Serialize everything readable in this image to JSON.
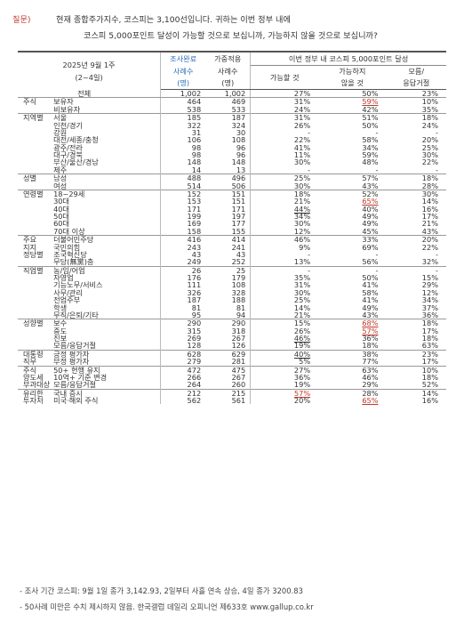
{
  "question": {
    "tag": "질문)",
    "line1": "현재 종합주가지수, 코스피는 3,100선입니다. 귀하는 이번 정부 내에",
    "line2": "코스피 5,000포인트 달성이 가능할 것으로 보십니까, 가능하지 않을 것으로 보십니까?"
  },
  "header": {
    "period": "2025년 9월 1주",
    "period_sub": "(2~4일)",
    "col_done": "조사완료",
    "col_weight": "가중적용",
    "col_n": "사례수",
    "col_unit": "(명)",
    "group": "이번 정부 내 코스피 5,000포인트 달성",
    "possible": "가능할 것",
    "impossible_1": "가능하지",
    "impossible_2": "않을 것",
    "unknown_1": "모름/",
    "unknown_2": "응답거절"
  },
  "rows": [
    {
      "cat": "",
      "sub": "전체",
      "n1": "1,002",
      "n2": "1,002",
      "a": "27%",
      "b": "50%",
      "c": "23%",
      "total": true
    },
    {
      "cat": "주식",
      "sub": "보유자",
      "n1": "464",
      "n2": "469",
      "a": "31%",
      "b": "59%",
      "c": "10%",
      "mb": "r"
    },
    {
      "cat": "",
      "sub": "비보유자",
      "n1": "538",
      "n2": "533",
      "a": "24%",
      "b": "42%",
      "c": "35%"
    },
    {
      "cat": "지역별",
      "sub": "서울",
      "n1": "185",
      "n2": "187",
      "a": "31%",
      "b": "51%",
      "c": "18%",
      "sep": true
    },
    {
      "cat": "",
      "sub": "인천/경기",
      "n1": "322",
      "n2": "324",
      "a": "26%",
      "b": "50%",
      "c": "24%"
    },
    {
      "cat": "",
      "sub": "강원",
      "n1": "31",
      "n2": "30",
      "a": "-",
      "b": "-",
      "c": "-"
    },
    {
      "cat": "",
      "sub": "대전/세종/충청",
      "n1": "106",
      "n2": "108",
      "a": "22%",
      "b": "58%",
      "c": "20%"
    },
    {
      "cat": "",
      "sub": "광주/전라",
      "n1": "98",
      "n2": "96",
      "a": "41%",
      "b": "34%",
      "c": "25%"
    },
    {
      "cat": "",
      "sub": "대구/경북",
      "n1": "98",
      "n2": "96",
      "a": "11%",
      "b": "59%",
      "c": "30%"
    },
    {
      "cat": "",
      "sub": "부산/울산/경남",
      "n1": "148",
      "n2": "148",
      "a": "30%",
      "b": "48%",
      "c": "22%"
    },
    {
      "cat": "",
      "sub": "제주",
      "n1": "14",
      "n2": "13",
      "a": "-",
      "b": "-",
      "c": "-"
    },
    {
      "cat": "성별",
      "sub": "남성",
      "n1": "488",
      "n2": "496",
      "a": "25%",
      "b": "57%",
      "c": "18%",
      "sep": true
    },
    {
      "cat": "",
      "sub": "여성",
      "n1": "514",
      "n2": "506",
      "a": "30%",
      "b": "43%",
      "c": "28%"
    },
    {
      "cat": "연령별",
      "sub": "18~29세",
      "n1": "152",
      "n2": "151",
      "a": "18%",
      "b": "52%",
      "c": "30%",
      "sep": true
    },
    {
      "cat": "",
      "sub": "30대",
      "n1": "153",
      "n2": "151",
      "a": "21%",
      "b": "65%",
      "c": "14%",
      "mb": "r"
    },
    {
      "cat": "",
      "sub": "40대",
      "n1": "171",
      "n2": "171",
      "a": "44%",
      "b": "40%",
      "c": "16%",
      "ma": "u"
    },
    {
      "cat": "",
      "sub": "50대",
      "n1": "199",
      "n2": "197",
      "a": "34%",
      "b": "49%",
      "c": "17%"
    },
    {
      "cat": "",
      "sub": "60대",
      "n1": "169",
      "n2": "177",
      "a": "30%",
      "b": "49%",
      "c": "21%"
    },
    {
      "cat": "",
      "sub": "70대 이상",
      "n1": "158",
      "n2": "155",
      "a": "12%",
      "b": "45%",
      "c": "43%"
    },
    {
      "cat": "주요",
      "sub": "더불어민주당",
      "n1": "416",
      "n2": "414",
      "a": "46%",
      "b": "33%",
      "c": "20%",
      "sep": true
    },
    {
      "cat": "지지",
      "sub": "국민의힘",
      "n1": "243",
      "n2": "241",
      "a": "9%",
      "b": "69%",
      "c": "22%"
    },
    {
      "cat": "정당별",
      "sub": "조국혁신당",
      "n1": "43",
      "n2": "43",
      "a": "-",
      "b": "-",
      "c": "-"
    },
    {
      "cat": "",
      "sub": "무당(無黨)층",
      "n1": "249",
      "n2": "252",
      "a": "13%",
      "b": "56%",
      "c": "32%"
    },
    {
      "cat": "직업별",
      "sub": "농/임/어업",
      "n1": "26",
      "n2": "25",
      "a": "-",
      "b": "-",
      "c": "-",
      "sep": true
    },
    {
      "cat": "",
      "sub": "자영업",
      "n1": "176",
      "n2": "179",
      "a": "35%",
      "b": "50%",
      "c": "15%"
    },
    {
      "cat": "",
      "sub": "기능노무/서비스",
      "n1": "111",
      "n2": "108",
      "a": "31%",
      "b": "41%",
      "c": "29%"
    },
    {
      "cat": "",
      "sub": "사무/관리",
      "n1": "326",
      "n2": "328",
      "a": "30%",
      "b": "58%",
      "c": "12%"
    },
    {
      "cat": "",
      "sub": "전업주부",
      "n1": "187",
      "n2": "188",
      "a": "25%",
      "b": "41%",
      "c": "34%"
    },
    {
      "cat": "",
      "sub": "학생",
      "n1": "81",
      "n2": "81",
      "a": "14%",
      "b": "49%",
      "c": "37%"
    },
    {
      "cat": "",
      "sub": "무직/은퇴/기타",
      "n1": "95",
      "n2": "94",
      "a": "21%",
      "b": "43%",
      "c": "36%"
    },
    {
      "cat": "성향별",
      "sub": "보수",
      "n1": "290",
      "n2": "290",
      "a": "15%",
      "b": "68%",
      "c": "18%",
      "sep": true,
      "mb": "r"
    },
    {
      "cat": "",
      "sub": "중도",
      "n1": "315",
      "n2": "318",
      "a": "26%",
      "b": "57%",
      "c": "17%",
      "mb": "r"
    },
    {
      "cat": "",
      "sub": "진보",
      "n1": "269",
      "n2": "267",
      "a": "46%",
      "b": "36%",
      "c": "18%",
      "ma": "u"
    },
    {
      "cat": "",
      "sub": "모름/응답거절",
      "n1": "128",
      "n2": "126",
      "a": "19%",
      "b": "18%",
      "c": "63%"
    },
    {
      "cat": "대통령",
      "sub": "긍정 평가자",
      "n1": "628",
      "n2": "629",
      "a": "40%",
      "b": "38%",
      "c": "23%",
      "sep": true,
      "ma": "u"
    },
    {
      "cat": "직무",
      "sub": "부정 평가자",
      "n1": "279",
      "n2": "281",
      "a": "5%",
      "b": "77%",
      "c": "17%"
    },
    {
      "cat": "주식",
      "sub": "50+ 현행 유지",
      "n1": "472",
      "n2": "475",
      "a": "27%",
      "b": "63%",
      "c": "10%",
      "sep": true
    },
    {
      "cat": "양도세",
      "sub": "10억+ 기준 변경",
      "n1": "266",
      "n2": "267",
      "a": "36%",
      "b": "46%",
      "c": "18%"
    },
    {
      "cat": "부과대상",
      "sub": "모름/응답거절",
      "n1": "264",
      "n2": "260",
      "a": "19%",
      "b": "29%",
      "c": "52%"
    },
    {
      "cat": "유리한",
      "sub": "국내 증시",
      "n1": "212",
      "n2": "215",
      "a": "57%",
      "b": "28%",
      "c": "14%",
      "sep": true,
      "ma": "r"
    },
    {
      "cat": "투자처",
      "sub": "미국·해외 주식",
      "n1": "562",
      "n2": "561",
      "a": "20%",
      "b": "65%",
      "c": "16%",
      "mb": "r"
    }
  ],
  "footnotes": [
    "- 조사 기간 코스피: 9월 1일 종가 3,142.93, 2일부터 사흘 연속 상승, 4일 종가 3200.83",
    "- 50사례 미만은 수치 제시하지 않음. 한국갤럽 데일리 오피니언 제633호 www.gallup.co.kr"
  ]
}
